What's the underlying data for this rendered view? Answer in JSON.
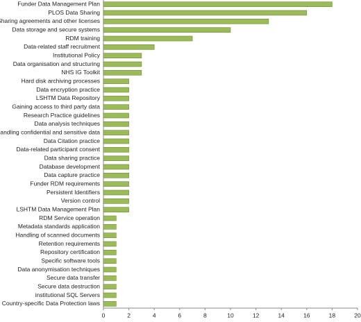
{
  "chart_data": {
    "type": "barh",
    "categories": [
      "Funder Data Management Plan",
      "PLOS Data Sharing",
      "Data Sharing agreements and other licenses",
      "Data storage and secure systems",
      "RDM training",
      "Data-related staff recruitment",
      "Institutional Policy",
      "Data organisation and structuring",
      "NHS IG Toolkit",
      "Hard disk archiving processes",
      "Data encryption practice",
      "LSHTM Data Repository",
      "Gaining access to third party data",
      "Research Practice guidelines",
      "Data analysis techniques",
      "Handling confidential and sensitive data",
      "Data Citation practice",
      "Data-related participant consent",
      "Data sharing practice",
      "Database development",
      "Data capture practice",
      "Funder RDM requirements",
      "Persistent Identifiers",
      "Version control",
      "LSHTM Data Management Plan",
      "RDM Service operation",
      "Metadata standards application",
      "Handling of scanned documents",
      "Retention requirements",
      "Repository certification",
      "Specific software tools",
      "Data anonymisation techniques",
      "Secure data transfer",
      "Secure data destruction",
      "institutional SQL Servers",
      "Country-specific Data Protection laws"
    ],
    "values": [
      18,
      16,
      13,
      10,
      7,
      4,
      3,
      3,
      3,
      2,
      2,
      2,
      2,
      2,
      2,
      2,
      2,
      2,
      2,
      2,
      2,
      2,
      2,
      2,
      2,
      1,
      1,
      1,
      1,
      1,
      1,
      1,
      1,
      1,
      1,
      1
    ],
    "color": "#9bbb59",
    "xlim": [
      0,
      20
    ],
    "xticks": [
      0,
      2,
      4,
      6,
      8,
      10,
      12,
      14,
      16,
      18,
      20
    ],
    "grid": false
  }
}
